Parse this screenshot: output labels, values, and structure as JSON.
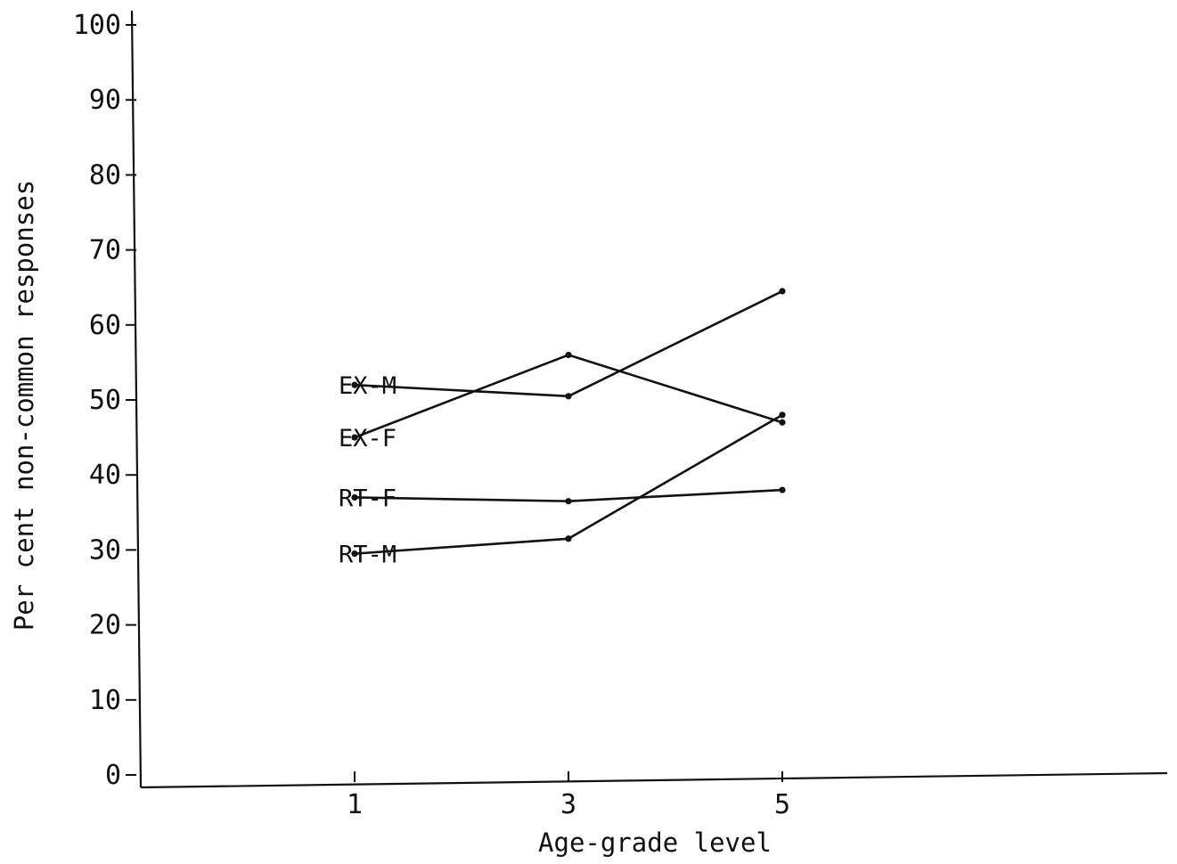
{
  "chart_data": {
    "type": "line",
    "title": "",
    "xlabel": "Age-grade level",
    "ylabel": "Per cent non-common responses",
    "x": [
      1,
      3,
      5
    ],
    "x_ticks": [
      "1",
      "3",
      "5"
    ],
    "xlim": [
      -1,
      8.6
    ],
    "ylim": [
      0,
      100
    ],
    "y_ticks": [
      "0",
      "10",
      "20",
      "30",
      "40",
      "50",
      "60",
      "70",
      "80",
      "90",
      "100"
    ],
    "grid": false,
    "legend": "inline labels at left end of each line",
    "series": [
      {
        "name": "EX-M",
        "values": [
          52,
          50.5,
          64.5
        ]
      },
      {
        "name": "EX-F",
        "values": [
          45,
          56,
          47
        ]
      },
      {
        "name": "RT-F",
        "values": [
          37,
          36.5,
          38
        ]
      },
      {
        "name": "RT-M",
        "values": [
          29.5,
          31.5,
          48
        ]
      }
    ]
  }
}
